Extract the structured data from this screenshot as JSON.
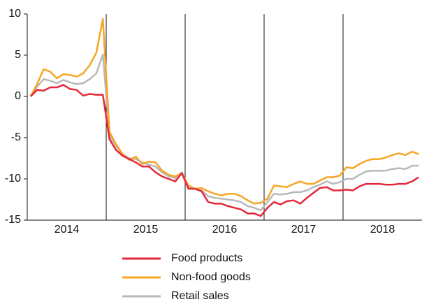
{
  "chart_data": {
    "type": "line",
    "x": [
      2014.042,
      2014.125,
      2014.208,
      2014.292,
      2014.375,
      2014.458,
      2014.542,
      2014.625,
      2014.708,
      2014.792,
      2014.875,
      2014.958,
      2015.042,
      2015.125,
      2015.208,
      2015.292,
      2015.375,
      2015.458,
      2015.542,
      2015.625,
      2015.708,
      2015.792,
      2015.875,
      2015.958,
      2016.042,
      2016.125,
      2016.208,
      2016.292,
      2016.375,
      2016.458,
      2016.542,
      2016.625,
      2016.708,
      2016.792,
      2016.875,
      2016.958,
      2017.042,
      2017.125,
      2017.208,
      2017.292,
      2017.375,
      2017.458,
      2017.542,
      2017.625,
      2017.708,
      2017.792,
      2017.875,
      2017.958,
      2018.042,
      2018.125,
      2018.208,
      2018.292,
      2018.375,
      2018.458,
      2018.542,
      2018.625,
      2018.708,
      2018.792,
      2018.875,
      2018.958
    ],
    "series": [
      {
        "name": "Food products",
        "color": "#e2283a",
        "values": [
          0,
          0.8,
          0.7,
          1.1,
          1.1,
          1.4,
          0.9,
          0.8,
          0.1,
          0.3,
          0.2,
          0.2,
          -5.2,
          -6.5,
          -7.2,
          -7.6,
          -8,
          -8.5,
          -8.5,
          -9.2,
          -9.7,
          -10,
          -10.3,
          -9.3,
          -11.2,
          -11.2,
          -11.5,
          -12.8,
          -13,
          -13,
          -13.3,
          -13.5,
          -13.7,
          -14.2,
          -14.2,
          -14.5,
          -13.5,
          -12.8,
          -13.1,
          -12.7,
          -12.6,
          -13,
          -12.3,
          -11.7,
          -11.1,
          -11,
          -11.4,
          -11.4,
          -11.3,
          -11.4,
          -10.9,
          -10.6,
          -10.6,
          -10.6,
          -10.7,
          -10.7,
          -10.6,
          -10.6,
          -10.3,
          -9.8
        ]
      },
      {
        "name": "Non-food goods",
        "color": "#f5a623",
        "values": [
          0,
          1.5,
          3.3,
          3,
          2.2,
          2.7,
          2.6,
          2.4,
          2.8,
          3.8,
          5.3,
          9.4,
          -4.3,
          -5.8,
          -7,
          -7.7,
          -7.3,
          -8.2,
          -7.9,
          -8,
          -9,
          -9.5,
          -9.7,
          -9.3,
          -10.8,
          -11.2,
          -11.1,
          -11.5,
          -11.8,
          -12,
          -11.8,
          -11.8,
          -12.1,
          -12.6,
          -13,
          -12.9,
          -12.4,
          -10.8,
          -10.9,
          -11,
          -10.6,
          -10.3,
          -10.6,
          -10.6,
          -10.2,
          -9.8,
          -9.8,
          -9.6,
          -8.6,
          -8.7,
          -8.2,
          -7.8,
          -7.6,
          -7.6,
          -7.4,
          -7.1,
          -6.9,
          -7.1,
          -6.7,
          -7
        ]
      },
      {
        "name": "Retail sales",
        "color": "#b9b9b9",
        "values": [
          0,
          1.2,
          2.1,
          1.9,
          1.6,
          2,
          1.7,
          1.5,
          1.6,
          2.1,
          2.8,
          5.1,
          -4.8,
          -6,
          -7,
          -7.5,
          -7.6,
          -8,
          -8.3,
          -8.5,
          -9.2,
          -9.7,
          -9.9,
          -9.2,
          -10.9,
          -11.2,
          -11.4,
          -12.1,
          -12.3,
          -12.4,
          -12.5,
          -12.6,
          -12.8,
          -13.3,
          -13.5,
          -13.8,
          -12.8,
          -11.8,
          -11.9,
          -11.8,
          -11.6,
          -11.6,
          -11.4,
          -11,
          -10.7,
          -10.3,
          -10.6,
          -10.4,
          -10,
          -10,
          -9.5,
          -9.1,
          -9,
          -9,
          -9,
          -8.8,
          -8.7,
          -8.8,
          -8.4,
          -8.4
        ]
      }
    ],
    "xlim": [
      2014,
      2019
    ],
    "xticks": [
      {
        "value": 2014.5,
        "label": "2014"
      },
      {
        "value": 2015.5,
        "label": "2015"
      },
      {
        "value": 2016.5,
        "label": "2016"
      },
      {
        "value": 2017.5,
        "label": "2017"
      },
      {
        "value": 2018.5,
        "label": "2018"
      }
    ],
    "xgrid": [
      2015,
      2016,
      2017,
      2018
    ],
    "ylim": [
      -15,
      10
    ],
    "yticks": [
      -15,
      -10,
      -5,
      0,
      5,
      10
    ]
  }
}
